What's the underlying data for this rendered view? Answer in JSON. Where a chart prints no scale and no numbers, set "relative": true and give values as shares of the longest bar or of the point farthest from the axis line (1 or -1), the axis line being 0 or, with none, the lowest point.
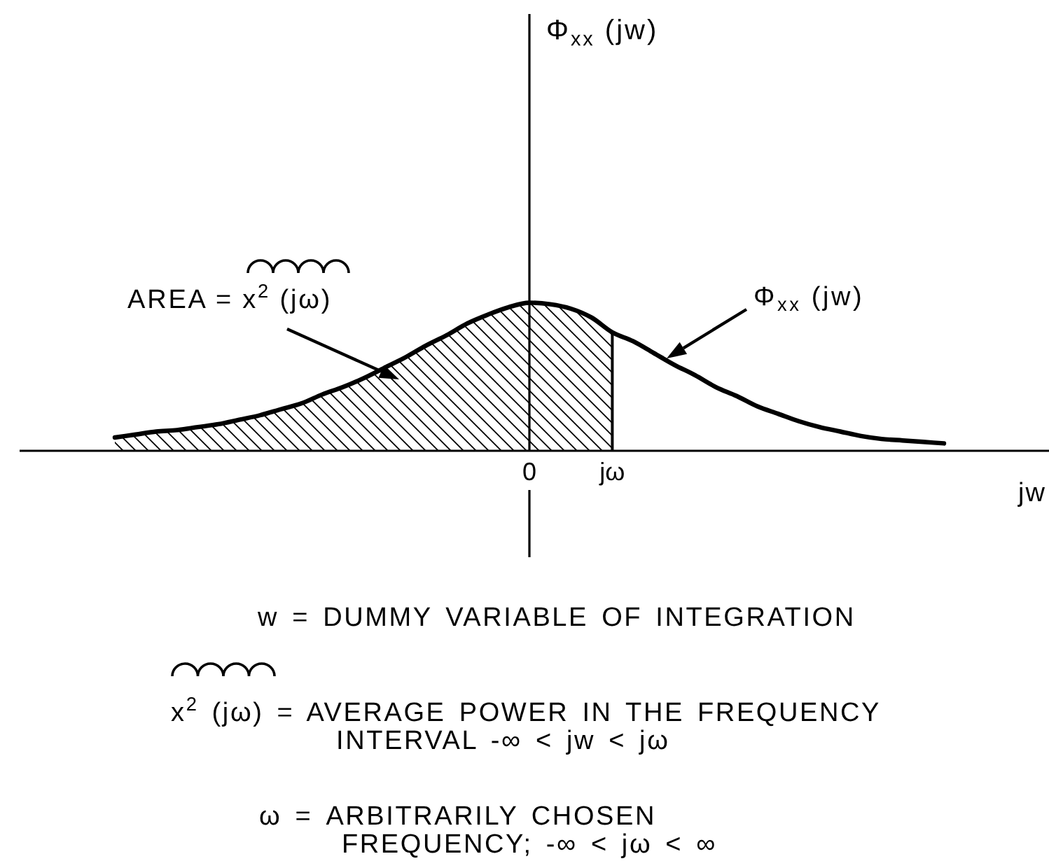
{
  "chart_data": {
    "type": "line",
    "relative": true,
    "xlabel": "jw",
    "categories": [
      null,
      null,
      null,
      null,
      null,
      null,
      null,
      null,
      null,
      null,
      null,
      null,
      null,
      null,
      null,
      null,
      null,
      null,
      null,
      null,
      "0",
      null,
      null,
      null,
      "jω",
      null,
      null,
      null,
      null,
      null,
      null,
      null,
      null,
      null,
      null,
      null,
      null,
      null,
      null,
      null,
      null
    ],
    "series": [
      {
        "color": "#000000",
        "values": [
          0.09,
          0.11,
          0.13,
          0.14,
          0.16,
          0.18,
          0.21,
          0.24,
          0.28,
          0.32,
          0.38,
          0.43,
          0.49,
          0.56,
          0.63,
          0.71,
          0.78,
          0.86,
          0.92,
          0.97,
          1.0,
          0.99,
          0.96,
          0.9,
          0.8,
          0.74,
          0.66,
          0.58,
          0.51,
          0.43,
          0.37,
          0.3,
          0.25,
          0.2,
          0.16,
          0.13,
          0.1,
          0.08,
          0.07,
          0.06,
          0.05
        ]
      },
      {
        "type": "area",
        "color": "#000000",
        "values": [
          0.09,
          0.11,
          0.13,
          0.14,
          0.16,
          0.18,
          0.21,
          0.24,
          0.28,
          0.32,
          0.38,
          0.43,
          0.49,
          0.56,
          0.63,
          0.71,
          0.78,
          0.86,
          0.92,
          0.97,
          1.0,
          0.99,
          0.96,
          0.9,
          0.8,
          null,
          null,
          null,
          null,
          null,
          null,
          null,
          null,
          null,
          null,
          null,
          null,
          null,
          null,
          null,
          null
        ]
      }
    ],
    "annotations": [
      "Φ$_{xx}$ (jw)",
      "AREA = x$^{2}$ (jω)",
      "Φ$_{xx}$ (jw)",
      "w = DUMMY VARIABLE OF INTEGRATION",
      "x$^{2}$ (jω) = AVERAGE POWER IN THE FREQUENCY INTERVAL -∞ < jw < jω",
      "ω = ARBITRARILY CHOSEN FREQUENCY; -∞ < jω < ∞"
    ]
  }
}
